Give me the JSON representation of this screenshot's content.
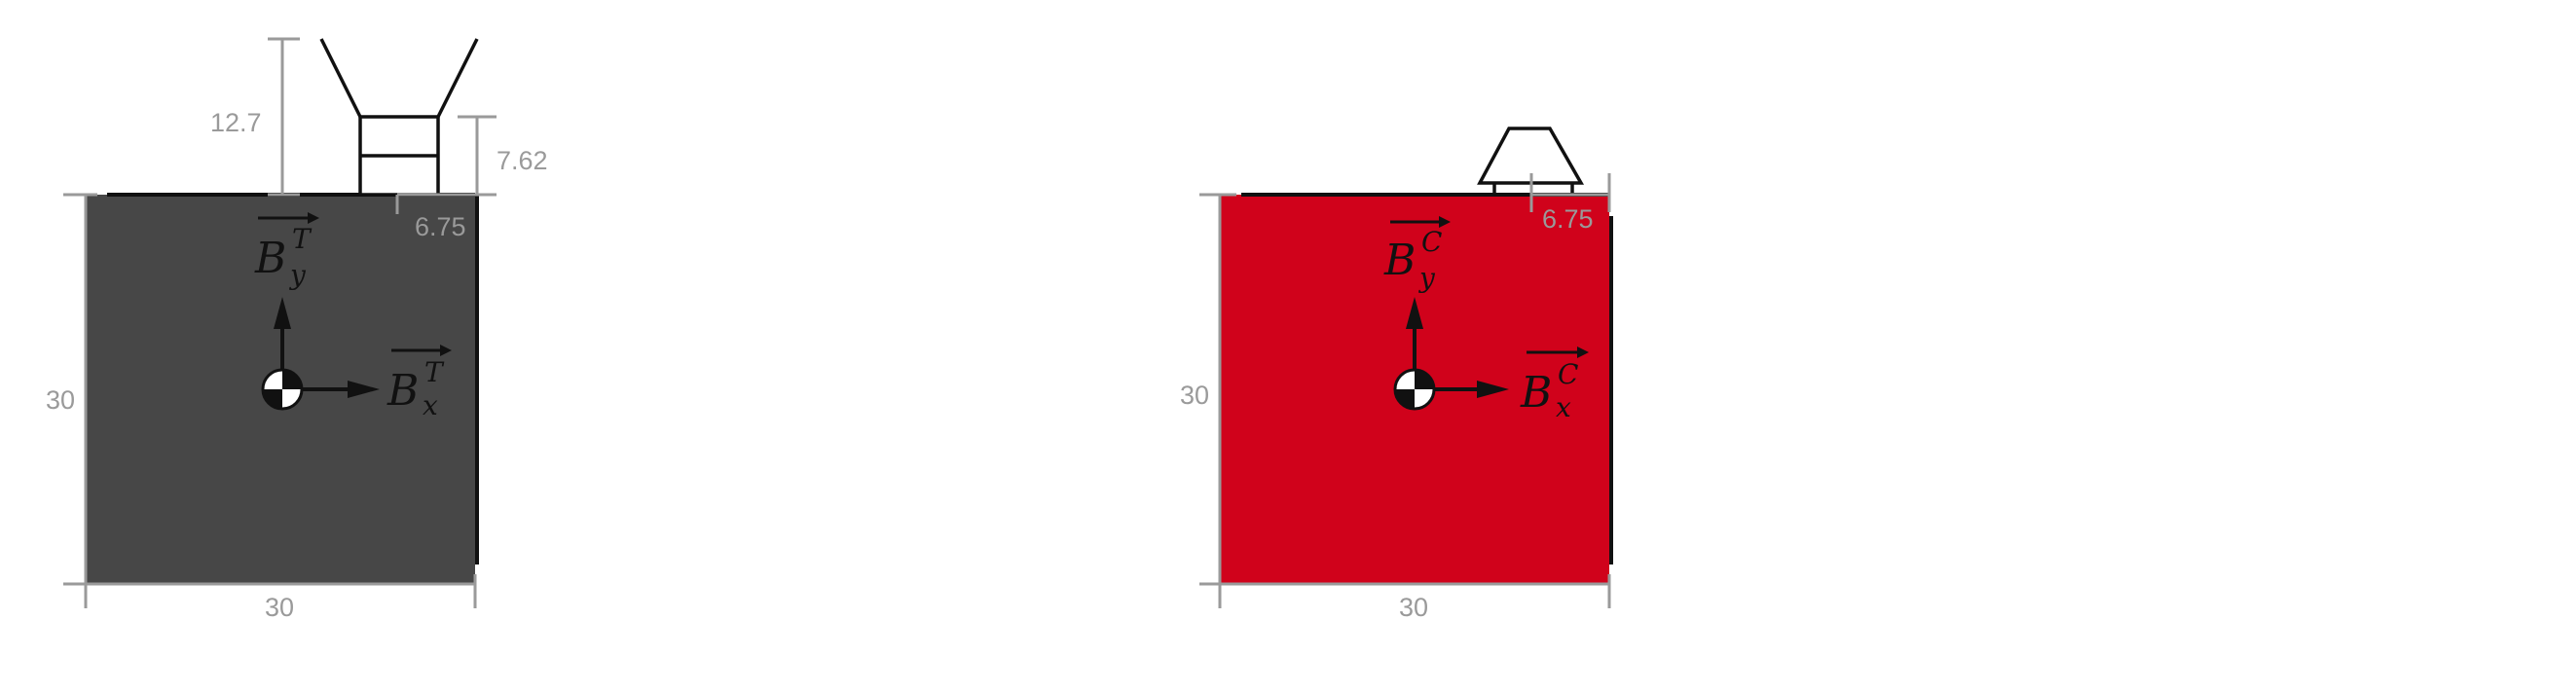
{
  "panels": [
    {
      "id": "left",
      "body_color": "#474747",
      "width_label": "30",
      "height_label": "30",
      "top_dims": {
        "upper_height": "12.7",
        "right_height": "7.62",
        "offset": "6.75"
      },
      "frame": {
        "y_base": "B",
        "y_sup": "T",
        "y_sub": "y",
        "x_base": "B",
        "x_sup": "T",
        "x_sub": "x"
      }
    },
    {
      "id": "right",
      "body_color": "#D0021B",
      "width_label": "30",
      "height_label": "30",
      "top_dims": {
        "offset": "6.75"
      },
      "frame": {
        "y_base": "B",
        "y_sup": "C",
        "y_sub": "y",
        "x_base": "B",
        "x_sup": "C",
        "x_sub": "x"
      }
    }
  ]
}
